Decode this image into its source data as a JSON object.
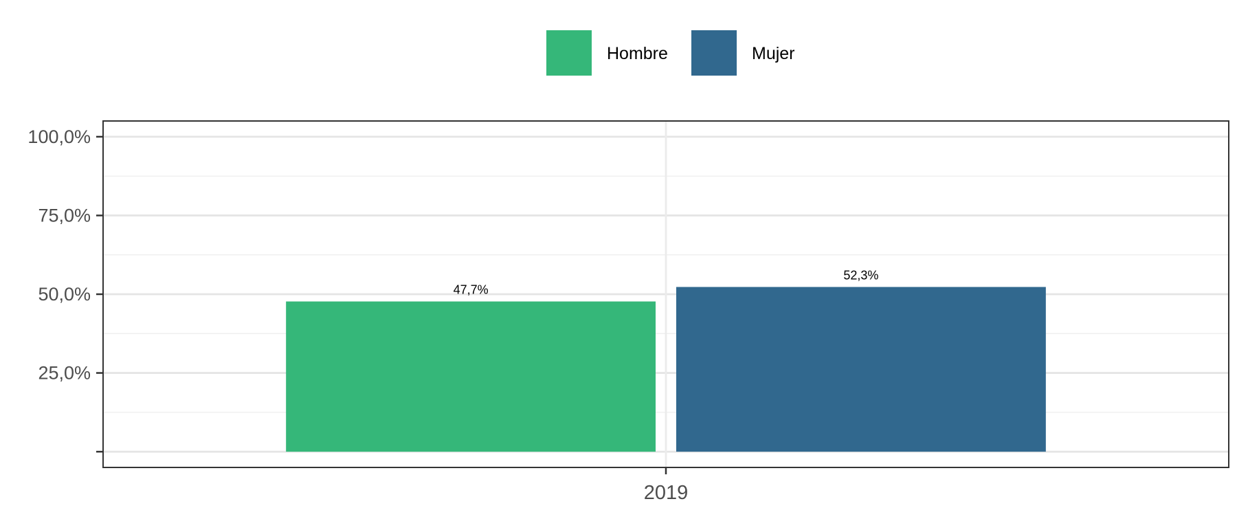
{
  "chart_data": {
    "type": "bar",
    "categories": [
      "2019"
    ],
    "series": [
      {
        "name": "Hombre",
        "values": [
          47.7
        ],
        "color": "#35B779",
        "label": "47,7%"
      },
      {
        "name": "Mujer",
        "values": [
          52.3
        ],
        "color": "#31688E",
        "label": "52,3%"
      }
    ],
    "title": "",
    "xlabel": "",
    "ylabel": "",
    "ylim": [
      -5,
      105
    ],
    "yticks": [
      0,
      25,
      50,
      75,
      100
    ],
    "ytick_labels": [
      "",
      "25,0%",
      "50,0%",
      "75,0%",
      "100,0%"
    ],
    "grid": true,
    "legend_position": "top"
  }
}
